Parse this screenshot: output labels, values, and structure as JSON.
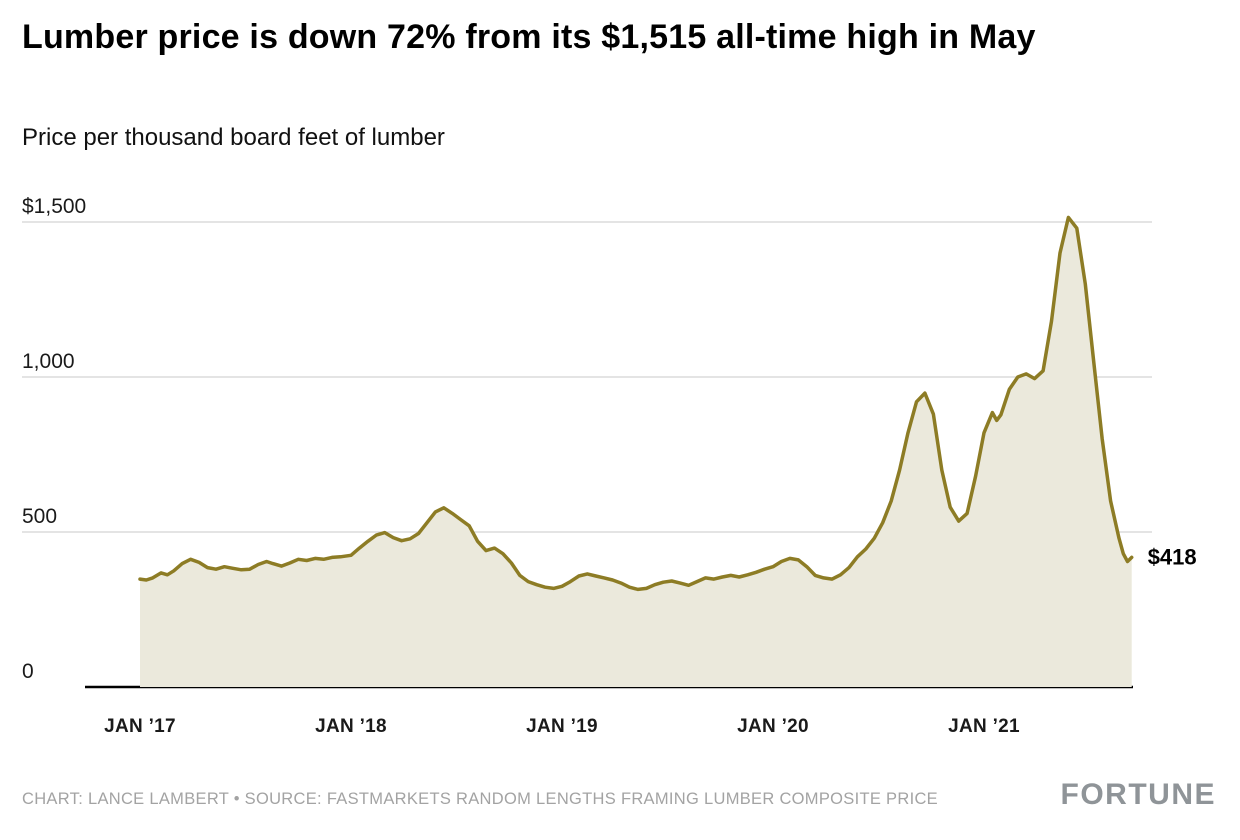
{
  "header": {
    "title": "Lumber price is down 72% from its $1,515 all-time high in May",
    "subtitle": "Price per thousand board feet of lumber"
  },
  "chart_data": {
    "type": "area",
    "title": "Lumber price is down 72% from its $1,515 all-time high in May",
    "subtitle": "Price per thousand board feet of lumber",
    "xlabel": "",
    "ylabel": "Price per thousand board feet ($)",
    "ylim": [
      0,
      1550
    ],
    "grid": true,
    "legend": "none",
    "end_label": "$418",
    "end_value": 418,
    "line_color": "#8d7c25",
    "fill_color": "#ebe9dc",
    "grid_color": "#c9c9c9",
    "axis_color": "#000000",
    "yticks": {
      "values": [
        0,
        500,
        1000,
        1500
      ],
      "labels": [
        "0",
        "500",
        "1,000",
        "$1,500"
      ]
    },
    "xticks": {
      "values": [
        2017,
        2018,
        2019,
        2020,
        2021
      ],
      "labels": [
        "JAN ’17",
        "JAN ’18",
        "JAN ’19",
        "JAN ’20",
        "JAN ’21"
      ]
    },
    "x": [
      2017.0,
      2017.03,
      2017.06,
      2017.1,
      2017.13,
      2017.16,
      2017.2,
      2017.24,
      2017.28,
      2017.32,
      2017.36,
      2017.4,
      2017.44,
      2017.48,
      2017.52,
      2017.56,
      2017.6,
      2017.63,
      2017.67,
      2017.71,
      2017.75,
      2017.79,
      2017.83,
      2017.87,
      2017.91,
      2017.95,
      2018.0,
      2018.04,
      2018.08,
      2018.12,
      2018.16,
      2018.2,
      2018.24,
      2018.28,
      2018.32,
      2018.36,
      2018.4,
      2018.44,
      2018.48,
      2018.52,
      2018.56,
      2018.6,
      2018.64,
      2018.68,
      2018.72,
      2018.76,
      2018.8,
      2018.84,
      2018.88,
      2018.92,
      2018.96,
      2019.0,
      2019.04,
      2019.08,
      2019.12,
      2019.16,
      2019.2,
      2019.24,
      2019.28,
      2019.32,
      2019.36,
      2019.4,
      2019.44,
      2019.48,
      2019.52,
      2019.56,
      2019.6,
      2019.64,
      2019.68,
      2019.72,
      2019.76,
      2019.8,
      2019.84,
      2019.88,
      2019.92,
      2019.96,
      2020.0,
      2020.04,
      2020.08,
      2020.12,
      2020.16,
      2020.2,
      2020.24,
      2020.28,
      2020.32,
      2020.36,
      2020.4,
      2020.44,
      2020.48,
      2020.52,
      2020.56,
      2020.6,
      2020.64,
      2020.68,
      2020.72,
      2020.76,
      2020.8,
      2020.84,
      2020.88,
      2020.92,
      2020.96,
      2021.0,
      2021.04,
      2021.06,
      2021.08,
      2021.12,
      2021.16,
      2021.2,
      2021.24,
      2021.28,
      2021.32,
      2021.36,
      2021.4,
      2021.44,
      2021.48,
      2021.52,
      2021.56,
      2021.6,
      2021.64,
      2021.66,
      2021.68,
      2021.7
    ],
    "values": [
      348,
      345,
      352,
      368,
      362,
      375,
      398,
      412,
      402,
      385,
      380,
      388,
      383,
      378,
      380,
      395,
      405,
      398,
      390,
      400,
      412,
      408,
      415,
      412,
      418,
      420,
      425,
      448,
      470,
      490,
      498,
      482,
      472,
      478,
      495,
      530,
      565,
      578,
      560,
      540,
      520,
      470,
      440,
      448,
      430,
      400,
      360,
      340,
      330,
      322,
      318,
      325,
      340,
      358,
      365,
      358,
      352,
      345,
      335,
      322,
      315,
      318,
      330,
      338,
      342,
      335,
      328,
      340,
      352,
      348,
      355,
      360,
      355,
      362,
      370,
      380,
      388,
      405,
      415,
      410,
      388,
      360,
      352,
      348,
      362,
      385,
      420,
      445,
      480,
      530,
      600,
      700,
      820,
      920,
      948,
      880,
      700,
      580,
      535,
      560,
      680,
      820,
      885,
      860,
      878,
      960,
      1000,
      1010,
      995,
      1020,
      1180,
      1400,
      1515,
      1480,
      1300,
      1050,
      800,
      600,
      480,
      430,
      405,
      418
    ]
  },
  "footer": {
    "credit": "CHART: LANCE LAMBERT • SOURCE: FASTMARKETS RANDOM LENGTHS FRAMING LUMBER COMPOSITE PRICE",
    "logo": "FORTUNE"
  }
}
